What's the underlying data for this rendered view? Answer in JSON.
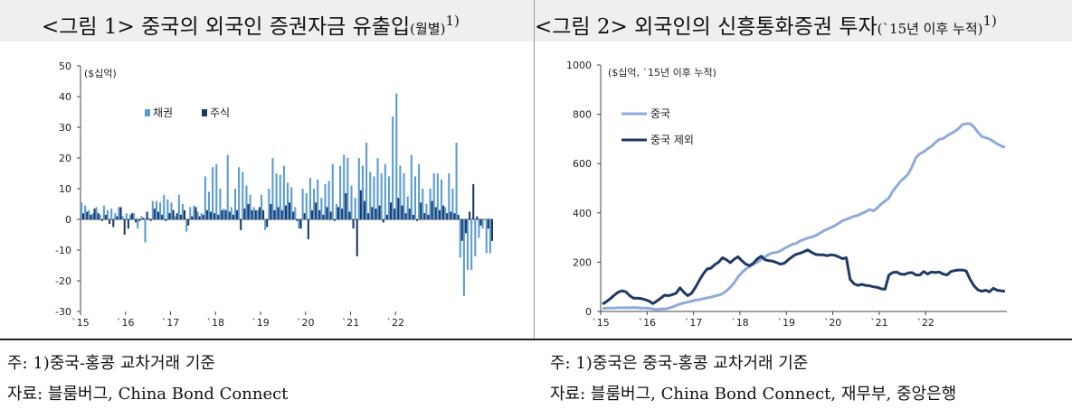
{
  "panels": [
    {
      "title": "<그림 1> 중국의 외국인 증권자금 유출입",
      "title_suffix": "(월별)",
      "title_sup": "1)",
      "note": "주: 1)중국-홍콩 교차거래 기준",
      "source": "자료: 블룸버그, China Bond Connect"
    },
    {
      "title": "<그림 2> 외국인의 신흥통화증권 투자",
      "title_suffix": "(`15년 이후 누적)",
      "title_sup": "1)",
      "note": "주: 1)중국은 중국-홍콩 교차거래 기준",
      "source": "자료: 블룸버그, China Bond Connect,  재무부, 중앙은행"
    }
  ],
  "chart_data": [
    {
      "type": "bar",
      "unit_label": "($십억)",
      "ylim": [
        -30,
        50
      ],
      "yticks": [
        -30,
        -20,
        -10,
        0,
        10,
        20,
        30,
        40,
        50
      ],
      "xticks": [
        "`15",
        "`16",
        "`17",
        "`18",
        "`19",
        "`20",
        "`21",
        "`22"
      ],
      "legend_position": "top-left",
      "colors": {
        "채권": "#5b9bd5",
        "주식": "#1f3864"
      },
      "x_start": "2015-01",
      "series": [
        {
          "name": "채권",
          "values": [
            5.5,
            4.5,
            3.0,
            2.0,
            4.0,
            1.5,
            4.5,
            3.0,
            3.5,
            2.0,
            4.0,
            1.0,
            2.0,
            1.5,
            2.0,
            -3.0,
            1.0,
            -7.5,
            0.5,
            6.0,
            6.0,
            5.5,
            8.0,
            6.5,
            5.5,
            1.0,
            8.0,
            5.0,
            -4.0,
            4.0,
            4.5,
            2.5,
            2.0,
            14.0,
            9.0,
            17.0,
            18.0,
            10.0,
            3.5,
            21.0,
            4.0,
            10.0,
            17.0,
            15.5,
            11.0,
            8.0,
            4.0,
            3.0,
            8.0,
            -3.5,
            10.0,
            20.0,
            15.0,
            14.5,
            17.5,
            12.0,
            10.5,
            4.0,
            -3.0,
            10.0,
            8.5,
            13.5,
            10.0,
            13.0,
            7.0,
            11.5,
            12.5,
            18.0,
            5.0,
            17.5,
            21.0,
            20.0,
            11.0,
            7.0,
            20.0,
            17.5,
            25.0,
            15.5,
            14.0,
            20.0,
            15.0,
            18.0,
            14.0,
            33.5,
            41.0,
            17.5,
            15.0,
            7.5,
            21.0,
            14.0,
            18.0,
            10.0,
            5.0,
            10.0,
            15.0,
            15.0,
            13.0,
            4.0,
            15.0,
            10.0,
            25.0,
            -12.5,
            -25.0,
            -16.5,
            -16.5,
            -12.0,
            -6.0,
            -3.0,
            -11.0,
            -11.0
          ]
        },
        {
          "name": "주식",
          "values": [
            2.0,
            2.5,
            1.5,
            3.5,
            2.0,
            -0.5,
            1.5,
            -1.5,
            -2.5,
            1.0,
            4.0,
            -5.0,
            -3.0,
            2.0,
            -1.0,
            -0.5,
            0.5,
            2.5,
            -0.5,
            3.5,
            2.5,
            1.5,
            -0.5,
            2.0,
            3.0,
            2.0,
            1.5,
            3.0,
            -2.0,
            1.0,
            4.0,
            1.0,
            1.5,
            3.0,
            2.5,
            2.0,
            1.5,
            3.0,
            3.0,
            2.5,
            1.5,
            3.0,
            -3.5,
            3.5,
            5.0,
            3.0,
            3.0,
            4.0,
            3.0,
            -2.5,
            5.0,
            3.0,
            4.0,
            3.0,
            4.5,
            5.5,
            2.5,
            -0.5,
            -3.0,
            2.0,
            -6.5,
            3.0,
            5.5,
            3.0,
            1.5,
            4.0,
            2.5,
            -0.5,
            4.0,
            3.5,
            8.5,
            2.5,
            -3.0,
            -12.0,
            9.5,
            6.0,
            2.0,
            4.0,
            3.5,
            4.5,
            -1.0,
            1.5,
            5.5,
            3.5,
            7.0,
            4.5,
            2.0,
            3.5,
            1.5,
            -0.5,
            5.5,
            2.0,
            1.5,
            6.0,
            4.0,
            3.0,
            4.5,
            2.0,
            2.5,
            2.0,
            1.5,
            -7.0,
            -4.5,
            2.5,
            11.5,
            1.0,
            -2.0,
            0.0,
            -3.0,
            -7.0
          ]
        }
      ]
    },
    {
      "type": "line",
      "unit_label": "($십억, `15년 이후 누적)",
      "ylim": [
        0,
        1000
      ],
      "yticks": [
        0,
        200,
        400,
        600,
        800,
        1000
      ],
      "xticks": [
        "`15",
        "`16",
        "`17",
        "`18",
        "`19",
        "`20",
        "`21",
        "`22"
      ],
      "legend_position": "top-left",
      "colors": {
        "중국": "#8eaadb",
        "중국 제외": "#1f3864"
      },
      "x_start": "2015-01",
      "series": [
        {
          "name": "중국",
          "values": [
            12,
            14,
            14,
            14,
            15,
            15,
            15,
            15,
            16,
            15,
            14,
            14,
            13,
            10,
            8,
            10,
            10,
            13,
            18,
            24,
            30,
            34,
            38,
            42,
            46,
            48,
            52,
            55,
            58,
            63,
            66,
            72,
            84,
            98,
            116,
            140,
            158,
            172,
            182,
            192,
            200,
            212,
            222,
            232,
            238,
            240,
            246,
            256,
            264,
            272,
            276,
            286,
            292,
            298,
            302,
            307,
            316,
            326,
            334,
            340,
            348,
            358,
            368,
            374,
            380,
            386,
            390,
            398,
            404,
            414,
            408,
            420,
            436,
            448,
            460,
            488,
            508,
            528,
            542,
            558,
            588,
            624,
            640,
            648,
            660,
            670,
            685,
            698,
            702,
            712,
            722,
            730,
            742,
            758,
            762,
            762,
            748,
            728,
            710,
            705,
            700,
            690,
            680,
            672,
            665
          ]
        },
        {
          "name": "중국 제외",
          "values": [
            30,
            40,
            52,
            66,
            78,
            84,
            80,
            64,
            54,
            54,
            52,
            48,
            42,
            32,
            42,
            54,
            66,
            64,
            68,
            74,
            96,
            78,
            64,
            74,
            98,
            126,
            152,
            172,
            176,
            190,
            200,
            218,
            210,
            198,
            212,
            222,
            206,
            192,
            186,
            196,
            214,
            224,
            210,
            206,
            204,
            198,
            192,
            196,
            210,
            222,
            232,
            236,
            242,
            250,
            240,
            232,
            230,
            230,
            226,
            230,
            228,
            222,
            214,
            218,
            130,
            112,
            106,
            110,
            106,
            104,
            100,
            98,
            92,
            90,
            148,
            158,
            160,
            152,
            150,
            156,
            158,
            148,
            148,
            162,
            152,
            160,
            158,
            160,
            152,
            148,
            162,
            166,
            168,
            168,
            164,
            130,
            104,
            88,
            82,
            86,
            80,
            94,
            86,
            84,
            82
          ]
        }
      ]
    }
  ]
}
